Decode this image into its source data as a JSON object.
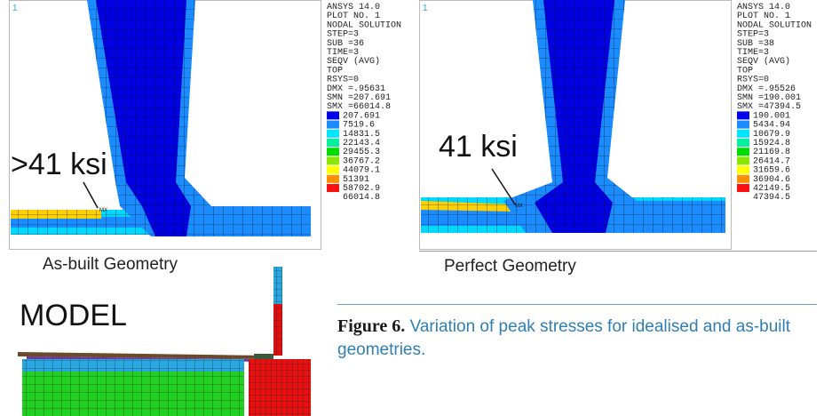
{
  "panels": [
    {
      "corner": "1",
      "header": [
        "ANSYS 14.0",
        "PLOT NO.   1",
        "NODAL SOLUTION",
        "STEP=3",
        "SUB =36",
        "TIME=3",
        "SEQV      (AVG)",
        "TOP",
        "RSYS=0",
        "DMX =.95631",
        "SMN =207.691",
        "SMX =66014.8"
      ],
      "legend": [
        "207.691",
        "7519.6",
        "14831.5",
        "22143.4",
        "29455.3",
        "36767.2",
        "44079.1",
        "51391",
        "58702.9",
        "66014.8"
      ],
      "annotation": ">41 ksi",
      "marker": "MX",
      "caption": "As-built Geometry"
    },
    {
      "corner": "1",
      "header": [
        "ANSYS 14.0",
        "PLOT NO.   1",
        "NODAL SOLUTION",
        "STEP=3",
        "SUB =38",
        "TIME=3",
        "SEQV      (AVG)",
        "TOP",
        "RSYS=0",
        "DMX =.95526",
        "SMN =190.001",
        "SMX =47394.5"
      ],
      "legend": [
        "190.001",
        "5434.94",
        "10679.9",
        "15924.8",
        "21169.8",
        "26414.7",
        "31659.6",
        "36904.6",
        "42149.5",
        "47394.5"
      ],
      "annotation": "41 ksi",
      "marker": "MX",
      "caption": "Perfect Geometry"
    }
  ],
  "model": {
    "label": "MODEL"
  },
  "figure": {
    "label": "Figure 6.",
    "caption": "Variation of peak stresses for idealised and as-built geometries."
  }
}
